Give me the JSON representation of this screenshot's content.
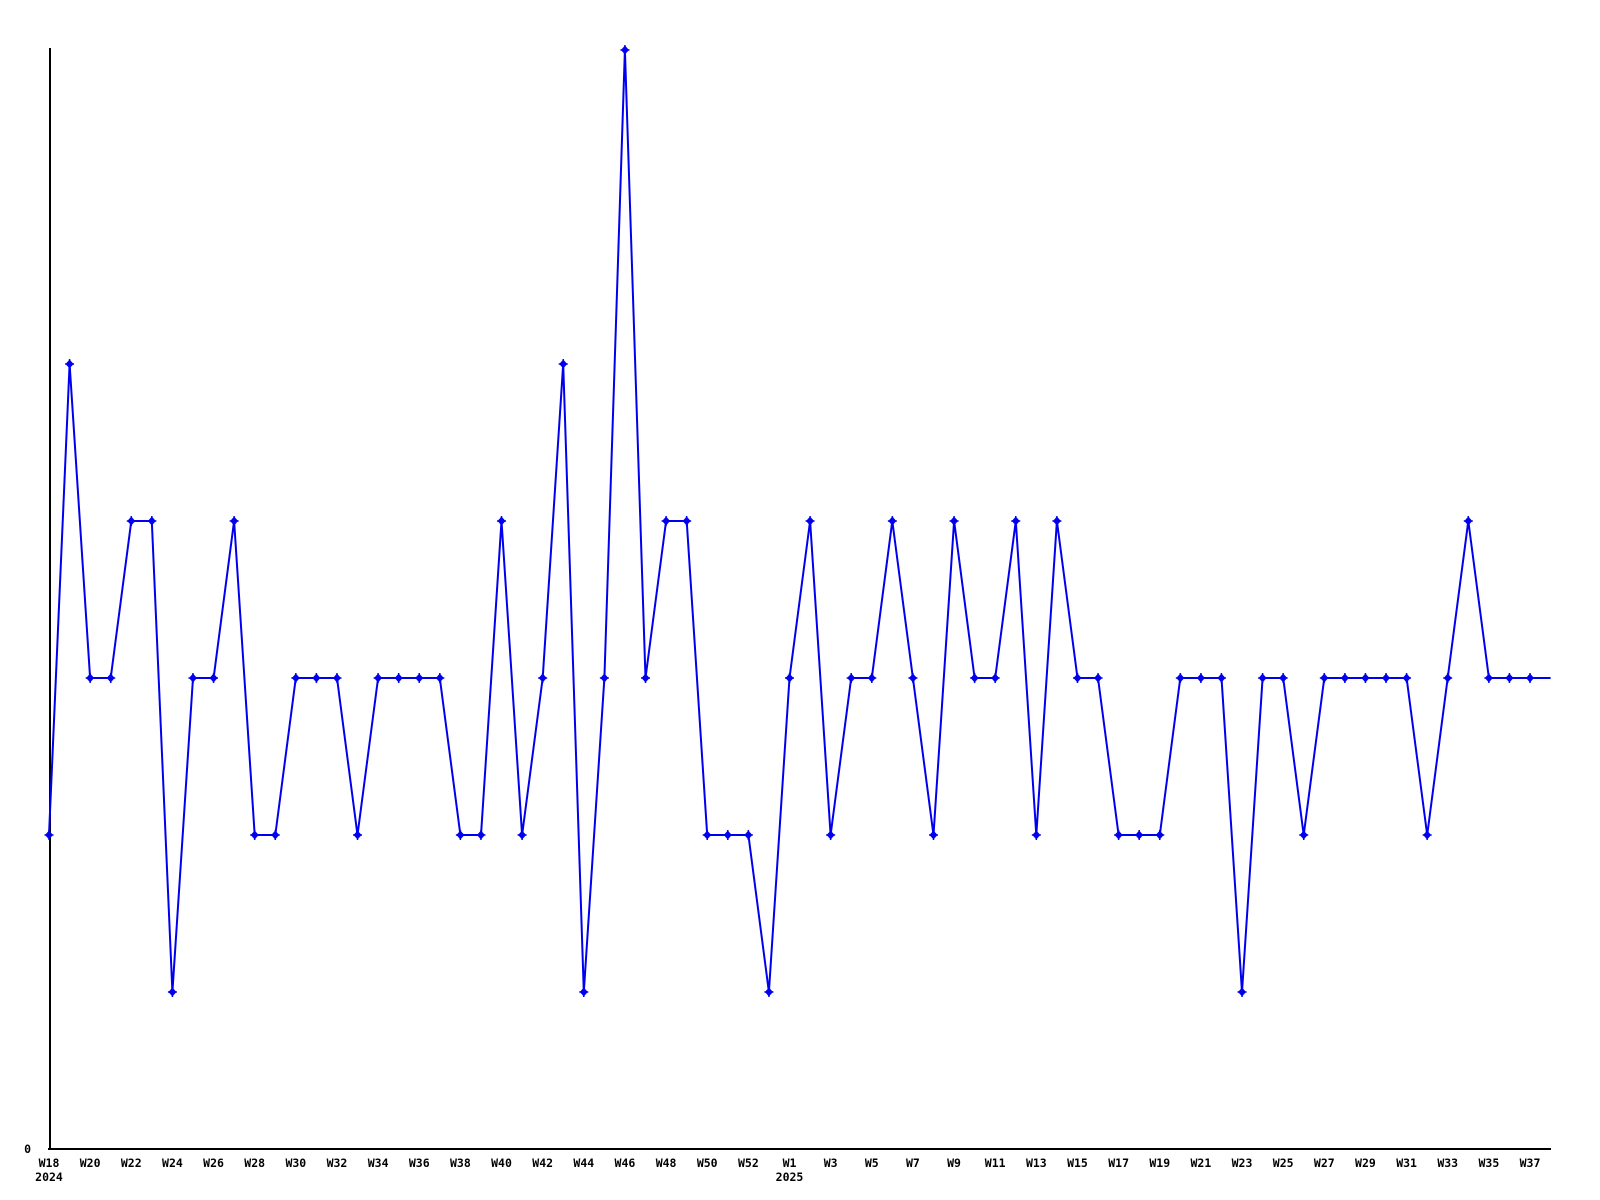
{
  "chart_data": {
    "type": "line",
    "title": "",
    "xlabel": "",
    "ylabel": "",
    "grid": false,
    "legend": "none",
    "line_color": "#0000ee",
    "axis_color": "#000000",
    "marker": "diamond",
    "ylim": [
      0,
      7.05
    ],
    "y_ticks": [
      {
        "label": "0",
        "value": 0
      }
    ],
    "categories": [
      "2024-W18",
      "2024-W19",
      "2024-W20",
      "2024-W21",
      "2024-W22",
      "2024-W23",
      "2024-W24",
      "2024-W25",
      "2024-W26",
      "2024-W27",
      "2024-W28",
      "2024-W29",
      "2024-W30",
      "2024-W31",
      "2024-W32",
      "2024-W33",
      "2024-W34",
      "2024-W35",
      "2024-W36",
      "2024-W37",
      "2024-W38",
      "2024-W39",
      "2024-W40",
      "2024-W41",
      "2024-W42",
      "2024-W43",
      "2024-W44",
      "2024-W45",
      "2024-W46",
      "2024-W47",
      "2024-W48",
      "2024-W49",
      "2024-W50",
      "2024-W51",
      "2024-W52",
      "2024-W53",
      "2025-W1",
      "2025-W2",
      "2025-W3",
      "2025-W4",
      "2025-W5",
      "2025-W6",
      "2025-W7",
      "2025-W8",
      "2025-W9",
      "2025-W10",
      "2025-W11",
      "2025-W12",
      "2025-W13",
      "2025-W14",
      "2025-W15",
      "2025-W16",
      "2025-W17",
      "2025-W18",
      "2025-W19",
      "2025-W20",
      "2025-W21",
      "2025-W22",
      "2025-W23",
      "2025-W24",
      "2025-W25",
      "2025-W26",
      "2025-W27",
      "2025-W28",
      "2025-W29",
      "2025-W30",
      "2025-W31",
      "2025-W32",
      "2025-W33",
      "2025-W34",
      "2025-W35",
      "2025-W36",
      "2025-W37"
    ],
    "values": [
      2,
      5,
      3,
      3,
      4,
      4,
      1,
      3,
      3,
      4,
      2,
      2,
      3,
      3,
      3,
      2,
      3,
      3,
      3,
      3,
      2,
      2,
      4,
      2,
      3,
      5,
      1,
      3,
      7,
      3,
      4,
      4,
      2,
      2,
      2,
      1,
      3,
      4,
      2,
      3,
      3,
      4,
      3,
      2,
      4,
      3,
      3,
      4,
      2,
      4,
      3,
      3,
      2,
      2,
      2,
      3,
      3,
      3,
      1,
      3,
      3,
      2,
      3,
      3,
      3,
      3,
      3,
      2,
      3,
      4,
      3,
      3,
      3
    ],
    "trailing_segment": {
      "value": 3,
      "note": "line continues one unlabeled week past last marker"
    },
    "x_ticks": [
      {
        "label": "W18",
        "year": "2024"
      },
      {
        "label": "W20"
      },
      {
        "label": "W22"
      },
      {
        "label": "W24"
      },
      {
        "label": "W26"
      },
      {
        "label": "W28"
      },
      {
        "label": "W30"
      },
      {
        "label": "W32"
      },
      {
        "label": "W34"
      },
      {
        "label": "W36"
      },
      {
        "label": "W38"
      },
      {
        "label": "W40"
      },
      {
        "label": "W42"
      },
      {
        "label": "W44"
      },
      {
        "label": "W46"
      },
      {
        "label": "W48"
      },
      {
        "label": "W50"
      },
      {
        "label": "W52"
      },
      {
        "label": "W1",
        "year": "2025"
      },
      {
        "label": "W3"
      },
      {
        "label": "W5"
      },
      {
        "label": "W7"
      },
      {
        "label": "W9"
      },
      {
        "label": "W11"
      },
      {
        "label": "W13"
      },
      {
        "label": "W15"
      },
      {
        "label": "W17"
      },
      {
        "label": "W19"
      },
      {
        "label": "W21"
      },
      {
        "label": "W23"
      },
      {
        "label": "W25"
      },
      {
        "label": "W27"
      },
      {
        "label": "W29"
      },
      {
        "label": "W31"
      },
      {
        "label": "W33"
      },
      {
        "label": "W35"
      },
      {
        "label": "W37"
      }
    ]
  }
}
